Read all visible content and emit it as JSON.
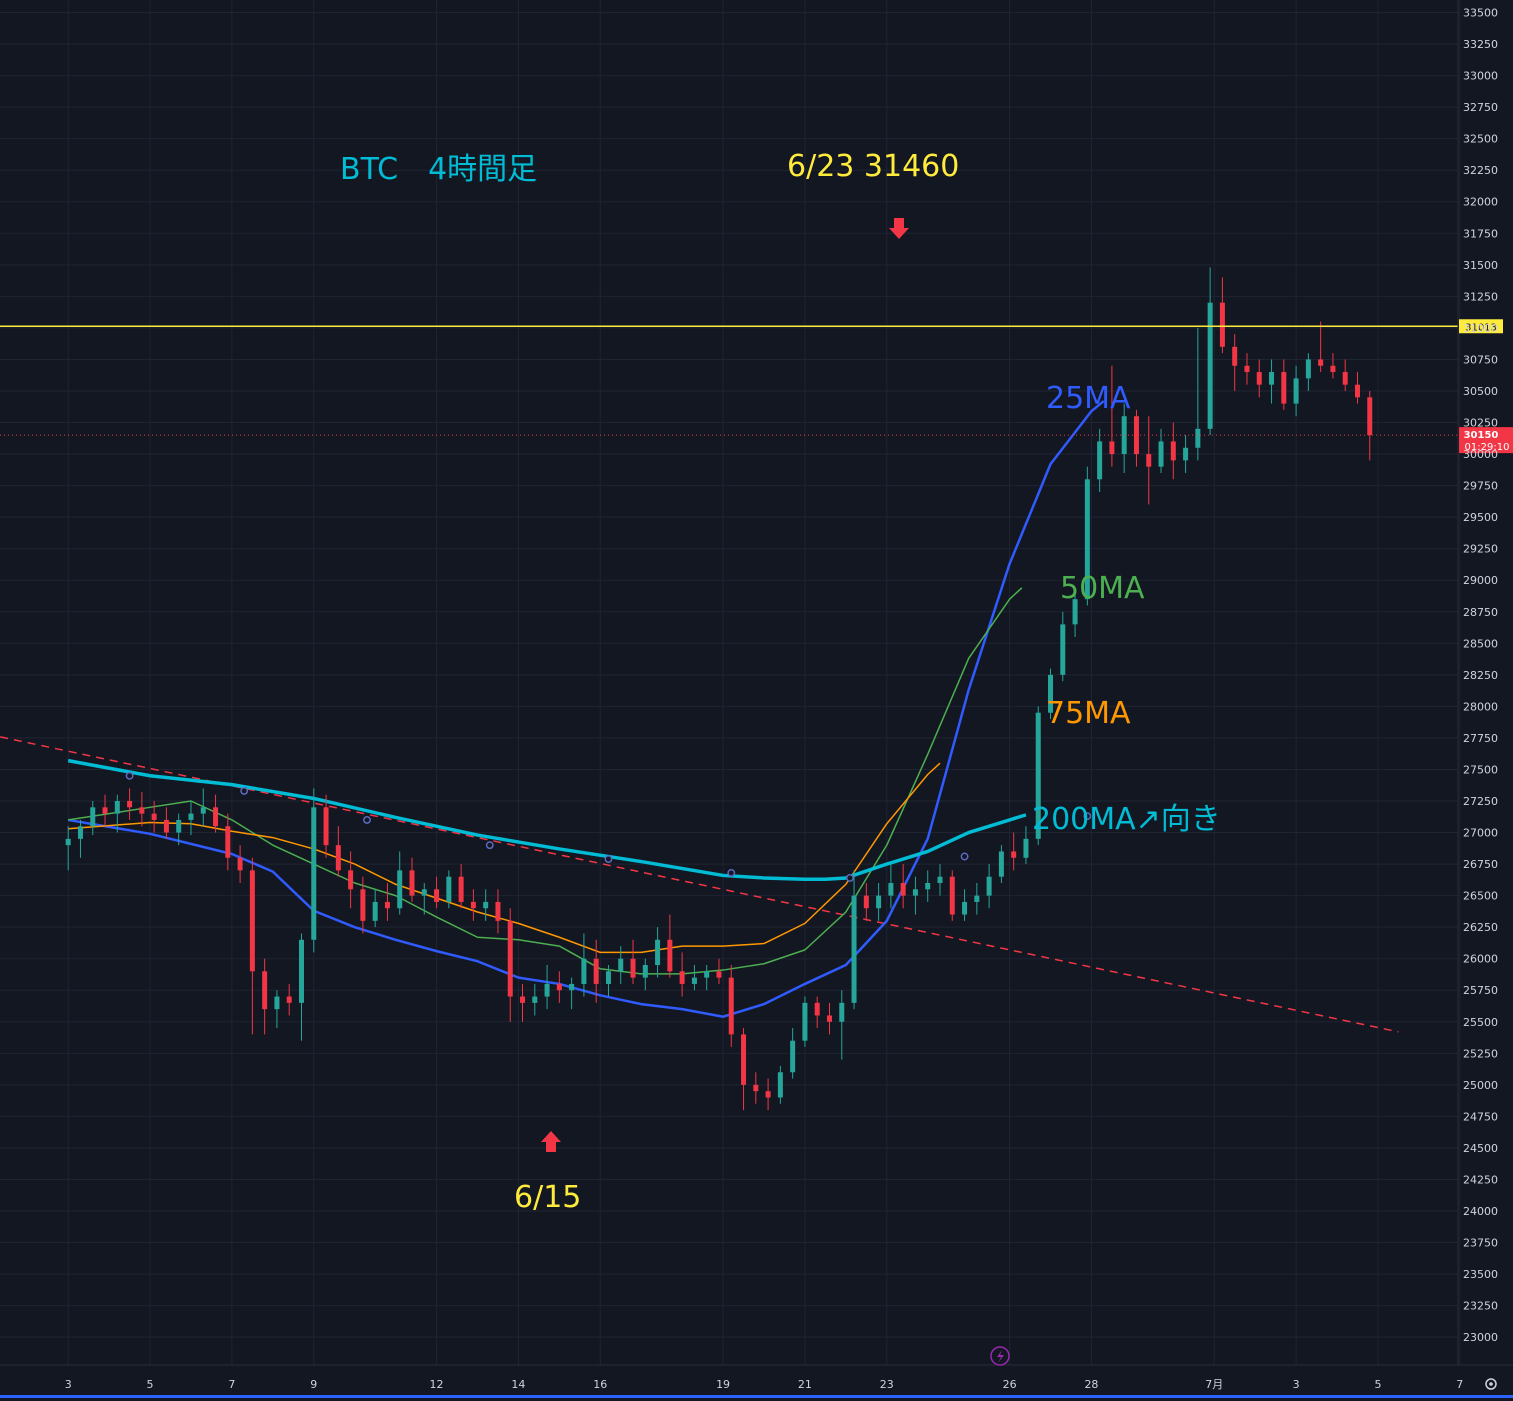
{
  "chart_data": {
    "type": "candlestick",
    "title": "BTC　4時間足",
    "colors": {
      "background": "#131722",
      "grid": "#1f2433",
      "up": "#26a69a",
      "down": "#f23645",
      "ma25": "#2f5bff",
      "ma50": "#4caf50",
      "ma75": "#ff9800",
      "ma200": "#00bcd4",
      "hline": "#ffeb3b",
      "trend": "#f23645",
      "annotation_yellow": "#ffeb3b",
      "arrow": "#f23645"
    },
    "y_axis": {
      "min": 22875,
      "max": 33625,
      "ticks": [
        "33500",
        "33250",
        "33000",
        "32750",
        "32500",
        "32250",
        "32000",
        "31750",
        "31500",
        "31250",
        "31000",
        "30750",
        "30500",
        "30250",
        "30000",
        "29750",
        "29500",
        "29250",
        "29000",
        "28750",
        "28500",
        "28250",
        "28000",
        "27750",
        "27500",
        "27250",
        "27000",
        "26750",
        "26500",
        "26250",
        "26000",
        "25750",
        "25500",
        "25250",
        "25000",
        "24750",
        "24500",
        "24250",
        "24000",
        "23750",
        "23500",
        "23250",
        "23000"
      ]
    },
    "x_axis": {
      "ticks": [
        "3",
        "5",
        "7",
        "9",
        "12",
        "14",
        "16",
        "19",
        "21",
        "23",
        "26",
        "28",
        "7月",
        "3",
        "5",
        "7"
      ],
      "tick_days": [
        3,
        5,
        7,
        9,
        12,
        14,
        16,
        19,
        21,
        23,
        26,
        28,
        31,
        33,
        35,
        37
      ]
    },
    "price_lines": [
      {
        "label": "31013",
        "value": 31013,
        "style": "solid"
      },
      {
        "label": "30150",
        "sublabel": "01:29:10",
        "value": 30150,
        "style": "dotted"
      }
    ],
    "trendline": {
      "from": [
        0,
        27850
      ],
      "to": [
        35.5,
        25420
      ],
      "style": "dashed"
    },
    "moving_averages": [
      {
        "name": "25MA",
        "label": "25MA",
        "label_color": "#2f5bff",
        "points": [
          [
            0,
            27100
          ],
          [
            2,
            26990
          ],
          [
            4,
            26830
          ],
          [
            5,
            26690
          ],
          [
            6,
            26380
          ],
          [
            7,
            26250
          ],
          [
            8,
            26150
          ],
          [
            9,
            26060
          ],
          [
            10,
            25980
          ],
          [
            11,
            25850
          ],
          [
            12,
            25800
          ],
          [
            13,
            25710
          ],
          [
            14,
            25640
          ],
          [
            15,
            25600
          ],
          [
            16,
            25540
          ],
          [
            17,
            25640
          ],
          [
            18,
            25800
          ],
          [
            19,
            25950
          ],
          [
            20,
            26300
          ],
          [
            21,
            26950
          ],
          [
            22,
            28130
          ],
          [
            23,
            29130
          ],
          [
            24,
            29920
          ],
          [
            25,
            30340
          ],
          [
            25.3,
            30420
          ]
        ]
      },
      {
        "name": "50MA",
        "label": "50MA",
        "label_color": "#4caf50",
        "points": [
          [
            0,
            27100
          ],
          [
            2,
            27200
          ],
          [
            3,
            27250
          ],
          [
            4,
            27100
          ],
          [
            5,
            26900
          ],
          [
            6,
            26750
          ],
          [
            7,
            26600
          ],
          [
            8,
            26500
          ],
          [
            9,
            26330
          ],
          [
            10,
            26170
          ],
          [
            11,
            26150
          ],
          [
            12,
            26100
          ],
          [
            13,
            25920
          ],
          [
            14,
            25880
          ],
          [
            15,
            25880
          ],
          [
            16,
            25910
          ],
          [
            17,
            25960
          ],
          [
            18,
            26070
          ],
          [
            19,
            26370
          ],
          [
            20,
            26900
          ],
          [
            21,
            27620
          ],
          [
            22,
            28380
          ],
          [
            23,
            28850
          ],
          [
            23.3,
            28940
          ]
        ]
      },
      {
        "name": "75MA",
        "label": "75MA",
        "label_color": "#ff9800",
        "points": [
          [
            0,
            27030
          ],
          [
            2,
            27080
          ],
          [
            3,
            27070
          ],
          [
            4,
            27010
          ],
          [
            5,
            26960
          ],
          [
            6,
            26870
          ],
          [
            7,
            26750
          ],
          [
            8,
            26590
          ],
          [
            9,
            26480
          ],
          [
            10,
            26370
          ],
          [
            11,
            26280
          ],
          [
            12,
            26170
          ],
          [
            13,
            26050
          ],
          [
            14,
            26050
          ],
          [
            15,
            26100
          ],
          [
            16,
            26100
          ],
          [
            17,
            26120
          ],
          [
            18,
            26280
          ],
          [
            19,
            26590
          ],
          [
            20,
            27070
          ],
          [
            21,
            27460
          ],
          [
            21.3,
            27550
          ]
        ]
      },
      {
        "name": "200MA",
        "label": "200MA↗向き",
        "label_color": "#00bcd4",
        "points": [
          [
            0,
            27570
          ],
          [
            2,
            27450
          ],
          [
            4,
            27380
          ],
          [
            6,
            27270
          ],
          [
            8,
            27120
          ],
          [
            10,
            26980
          ],
          [
            12,
            26870
          ],
          [
            14,
            26770
          ],
          [
            16,
            26660
          ],
          [
            17,
            26640
          ],
          [
            18,
            26630
          ],
          [
            18.5,
            26630
          ],
          [
            19,
            26640
          ],
          [
            20,
            26750
          ],
          [
            21,
            26850
          ],
          [
            22,
            27000
          ],
          [
            23,
            27100
          ],
          [
            23.4,
            27140
          ]
        ]
      }
    ],
    "ohlc": [
      [
        0.0,
        26900,
        27050,
        26700,
        26950
      ],
      [
        0.3,
        26950,
        27100,
        26800,
        27050
      ],
      [
        0.6,
        27050,
        27250,
        26980,
        27200
      ],
      [
        0.9,
        27200,
        27300,
        27050,
        27150
      ],
      [
        1.2,
        27150,
        27300,
        27000,
        27250
      ],
      [
        1.5,
        27250,
        27350,
        27100,
        27200
      ],
      [
        1.8,
        27200,
        27320,
        27050,
        27150
      ],
      [
        2.1,
        27150,
        27250,
        27000,
        27100
      ],
      [
        2.4,
        27100,
        27200,
        26950,
        27000
      ],
      [
        2.7,
        27000,
        27150,
        26900,
        27100
      ],
      [
        3.0,
        27100,
        27250,
        26980,
        27150
      ],
      [
        3.3,
        27150,
        27350,
        27050,
        27200
      ],
      [
        3.6,
        27200,
        27300,
        27000,
        27050
      ],
      [
        3.9,
        27050,
        27150,
        26700,
        26800
      ],
      [
        4.2,
        26800,
        26900,
        26600,
        26700
      ],
      [
        4.5,
        26700,
        26800,
        25400,
        25900
      ],
      [
        4.8,
        25900,
        26000,
        25400,
        25600
      ],
      [
        5.1,
        25600,
        25750,
        25450,
        25700
      ],
      [
        5.4,
        25700,
        25800,
        25550,
        25650
      ],
      [
        5.7,
        25650,
        26200,
        25350,
        26150
      ],
      [
        6.0,
        26150,
        27350,
        26050,
        27200
      ],
      [
        6.3,
        27200,
        27300,
        26800,
        26900
      ],
      [
        6.6,
        26900,
        27050,
        26650,
        26700
      ],
      [
        6.9,
        26700,
        26850,
        26400,
        26550
      ],
      [
        7.2,
        26550,
        26650,
        26200,
        26300
      ],
      [
        7.5,
        26300,
        26550,
        26250,
        26450
      ],
      [
        7.8,
        26450,
        26600,
        26300,
        26400
      ],
      [
        8.1,
        26400,
        26850,
        26350,
        26700
      ],
      [
        8.4,
        26700,
        26800,
        26450,
        26500
      ],
      [
        8.7,
        26500,
        26600,
        26350,
        26550
      ],
      [
        9.0,
        26550,
        26650,
        26400,
        26450
      ],
      [
        9.3,
        26450,
        26700,
        26400,
        26650
      ],
      [
        9.6,
        26650,
        26750,
        26400,
        26450
      ],
      [
        9.9,
        26450,
        26550,
        26300,
        26400
      ],
      [
        10.2,
        26400,
        26550,
        26300,
        26450
      ],
      [
        10.5,
        26450,
        26550,
        26200,
        26300
      ],
      [
        10.8,
        26300,
        26400,
        25500,
        25700
      ],
      [
        11.1,
        25700,
        25800,
        25500,
        25650
      ],
      [
        11.4,
        25650,
        25800,
        25550,
        25700
      ],
      [
        11.7,
        25700,
        25950,
        25600,
        25800
      ],
      [
        12.0,
        25800,
        25900,
        25650,
        25750
      ],
      [
        12.3,
        25750,
        25850,
        25600,
        25800
      ],
      [
        12.6,
        25800,
        26200,
        25700,
        26000
      ],
      [
        12.9,
        26000,
        26150,
        25650,
        25800
      ],
      [
        13.2,
        25800,
        25950,
        25700,
        25900
      ],
      [
        13.5,
        25900,
        26100,
        25800,
        26000
      ],
      [
        13.8,
        26000,
        26150,
        25800,
        25850
      ],
      [
        14.1,
        25850,
        26000,
        25750,
        25950
      ],
      [
        14.4,
        25950,
        26250,
        25850,
        26150
      ],
      [
        14.7,
        26150,
        26350,
        25850,
        25900
      ],
      [
        15.0,
        25900,
        26050,
        25700,
        25800
      ],
      [
        15.3,
        25800,
        25950,
        25750,
        25850
      ],
      [
        15.6,
        25850,
        25950,
        25750,
        25900
      ],
      [
        15.9,
        25900,
        26000,
        25800,
        25850
      ],
      [
        16.2,
        25850,
        25950,
        25300,
        25400
      ],
      [
        16.5,
        25400,
        25450,
        24800,
        25000
      ],
      [
        16.8,
        25000,
        25100,
        24850,
        24950
      ],
      [
        17.1,
        24950,
        25050,
        24800,
        24900
      ],
      [
        17.4,
        24900,
        25150,
        24850,
        25100
      ],
      [
        17.7,
        25100,
        25450,
        25050,
        25350
      ],
      [
        18.0,
        25350,
        25700,
        25300,
        25650
      ],
      [
        18.3,
        25650,
        25700,
        25450,
        25550
      ],
      [
        18.6,
        25550,
        25650,
        25400,
        25500
      ],
      [
        18.9,
        25500,
        25750,
        25200,
        25650
      ],
      [
        19.2,
        25650,
        26700,
        25600,
        26500
      ],
      [
        19.5,
        26500,
        26600,
        26300,
        26400
      ],
      [
        19.8,
        26400,
        26600,
        26300,
        26500
      ],
      [
        20.1,
        26500,
        26750,
        26400,
        26600
      ],
      [
        20.4,
        26600,
        26750,
        26400,
        26500
      ],
      [
        20.7,
        26500,
        26650,
        26350,
        26550
      ],
      [
        21.0,
        26550,
        26700,
        26450,
        26600
      ],
      [
        21.3,
        26600,
        26750,
        26500,
        26650
      ],
      [
        21.6,
        26650,
        26700,
        26300,
        26350
      ],
      [
        21.9,
        26350,
        26550,
        26300,
        26450
      ],
      [
        22.2,
        26450,
        26600,
        26350,
        26500
      ],
      [
        22.5,
        26500,
        26750,
        26400,
        26650
      ],
      [
        22.8,
        26650,
        26900,
        26600,
        26850
      ],
      [
        23.1,
        26850,
        27000,
        26700,
        26800
      ],
      [
        23.4,
        26800,
        27050,
        26750,
        26950
      ],
      [
        23.7,
        26950,
        28000,
        26900,
        27950
      ],
      [
        24.0,
        27950,
        28300,
        27900,
        28250
      ],
      [
        24.3,
        28250,
        28750,
        28200,
        28650
      ],
      [
        24.6,
        28650,
        28900,
        28550,
        28850
      ],
      [
        24.9,
        28850,
        29900,
        28800,
        29800
      ],
      [
        25.2,
        29800,
        30200,
        29700,
        30100
      ],
      [
        25.5,
        30100,
        30700,
        29900,
        30000
      ],
      [
        25.8,
        30000,
        30400,
        29850,
        30300
      ],
      [
        26.1,
        30300,
        30350,
        29900,
        30000
      ],
      [
        26.4,
        30000,
        30300,
        29600,
        29900
      ],
      [
        26.7,
        29900,
        30200,
        29850,
        30100
      ],
      [
        27.0,
        30100,
        30250,
        29800,
        29950
      ],
      [
        27.3,
        29950,
        30150,
        29850,
        30050
      ],
      [
        27.6,
        30050,
        31000,
        29950,
        30200
      ],
      [
        27.9,
        30200,
        31480,
        30150,
        31200
      ],
      [
        28.2,
        31200,
        31400,
        30800,
        30850
      ],
      [
        28.5,
        30850,
        30950,
        30500,
        30700
      ],
      [
        28.8,
        30700,
        30800,
        30550,
        30650
      ],
      [
        29.1,
        30650,
        30750,
        30450,
        30550
      ],
      [
        29.4,
        30550,
        30750,
        30400,
        30650
      ],
      [
        29.7,
        30650,
        30750,
        30350,
        30400
      ],
      [
        30.0,
        30400,
        30700,
        30300,
        30600
      ],
      [
        30.3,
        30600,
        30800,
        30500,
        30750
      ],
      [
        30.6,
        30750,
        31050,
        30650,
        30700
      ],
      [
        30.9,
        30700,
        30800,
        30600,
        30650
      ],
      [
        31.2,
        30650,
        30750,
        30500,
        30550
      ],
      [
        31.5,
        30550,
        30650,
        30400,
        30450
      ],
      [
        31.8,
        30450,
        30500,
        29950,
        30150
      ]
    ],
    "annotations": [
      {
        "text": "BTC　4時間足",
        "color": "#00bcd4"
      },
      {
        "text": "6/23 31460",
        "color": "#ffeb3b"
      },
      {
        "text": "6/15",
        "color": "#ffeb3b"
      }
    ]
  }
}
